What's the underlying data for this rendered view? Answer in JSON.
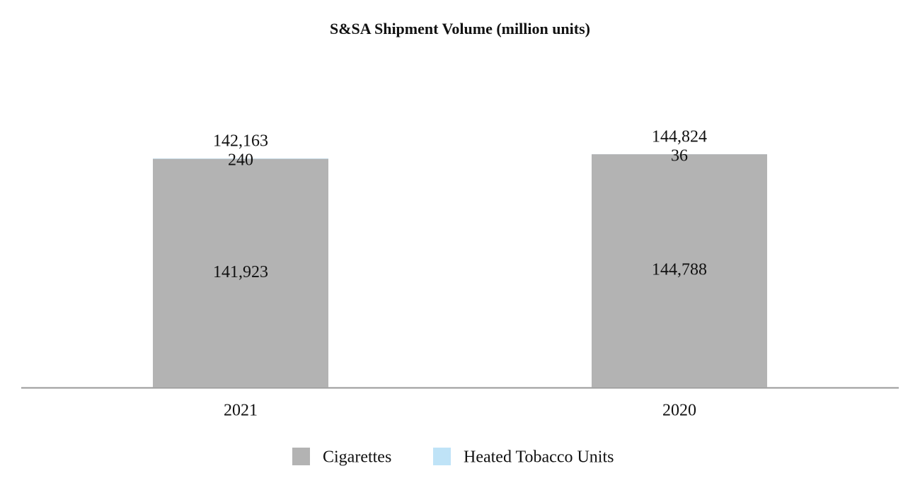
{
  "chart_data": {
    "type": "stacked-bar",
    "title": "S&SA Shipment Volume (million units)",
    "categories": [
      "2021",
      "2020"
    ],
    "series": [
      {
        "name": "Cigarettes",
        "color": "#b3b3b3",
        "values": [
          141923,
          144788
        ],
        "value_labels": [
          "141,923",
          "144,788"
        ]
      },
      {
        "name": "Heated Tobacco Units",
        "color": "#bfe3f7",
        "values": [
          240,
          36
        ]
      }
    ],
    "totals": [
      142163,
      144824
    ],
    "total_labels": [
      "142,163",
      "144,824"
    ]
  }
}
